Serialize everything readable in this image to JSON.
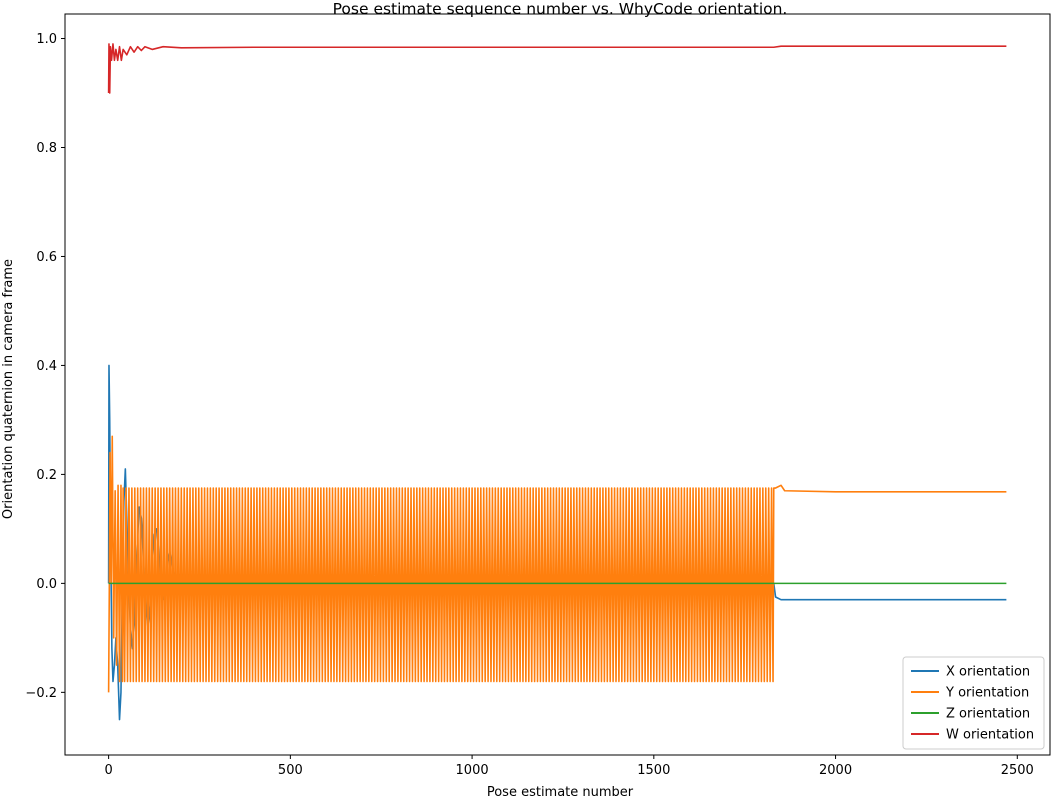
{
  "chart_data": {
    "type": "line",
    "title": "Pose estimate sequence number vs. WhyCode orientation.",
    "xlabel": "Pose estimate number",
    "ylabel": "Orientation quaternion in camera frame",
    "xlim": [
      -120,
      2590
    ],
    "ylim": [
      -0.315,
      1.045
    ],
    "x_ticks": [
      0,
      500,
      1000,
      1500,
      2000,
      2500
    ],
    "y_ticks": [
      -0.2,
      0.0,
      0.2,
      0.4,
      0.6,
      0.8,
      1.0
    ],
    "x_tick_labels": [
      "0",
      "500",
      "1000",
      "1500",
      "2000",
      "2500"
    ],
    "y_tick_labels": [
      "−0.2",
      "0.0",
      "0.2",
      "0.4",
      "0.6",
      "0.8",
      "1.0"
    ],
    "grid": false,
    "legend_position": "lower-right",
    "series": [
      {
        "name": "X orientation",
        "color": "#1f77b4",
        "points": [
          [
            0,
            0.0
          ],
          [
            1,
            0.4
          ],
          [
            3,
            0.3
          ],
          [
            6,
            0.05
          ],
          [
            9,
            -0.12
          ],
          [
            12,
            -0.18
          ],
          [
            16,
            -0.15
          ],
          [
            20,
            -0.1
          ],
          [
            25,
            -0.15
          ],
          [
            30,
            -0.25
          ],
          [
            34,
            -0.2
          ],
          [
            38,
            0.0
          ],
          [
            42,
            0.15
          ],
          [
            46,
            0.21
          ],
          [
            50,
            0.12
          ],
          [
            55,
            0.0
          ],
          [
            60,
            -0.08
          ],
          [
            66,
            -0.12
          ],
          [
            72,
            -0.06
          ],
          [
            78,
            0.06
          ],
          [
            84,
            0.14
          ],
          [
            90,
            0.12
          ],
          [
            96,
            0.04
          ],
          [
            102,
            -0.04
          ],
          [
            108,
            -0.08
          ],
          [
            114,
            -0.04
          ],
          [
            120,
            0.04
          ],
          [
            126,
            0.09
          ],
          [
            132,
            0.1
          ],
          [
            138,
            0.06
          ],
          [
            144,
            0.0
          ],
          [
            150,
            -0.03
          ],
          [
            156,
            -0.02
          ],
          [
            162,
            0.04
          ],
          [
            168,
            0.06
          ],
          [
            175,
            0.03
          ],
          [
            185,
            0.0
          ],
          [
            200,
            0.02
          ],
          [
            220,
            -0.01
          ],
          [
            250,
            0.0
          ],
          [
            300,
            0.01
          ],
          [
            400,
            0.0
          ],
          [
            500,
            0.0
          ],
          [
            700,
            0.0
          ],
          [
            1000,
            0.0
          ],
          [
            1300,
            0.0
          ],
          [
            1600,
            0.0
          ],
          [
            1830,
            0.0
          ],
          [
            1835,
            -0.025
          ],
          [
            1850,
            -0.03
          ],
          [
            1900,
            -0.03
          ],
          [
            2000,
            -0.03
          ],
          [
            2200,
            -0.03
          ],
          [
            2470,
            -0.03
          ]
        ]
      },
      {
        "name": "Y orientation",
        "color": "#ff7f0e",
        "oscillation": {
          "x_start": 40,
          "x_end": 1830,
          "period": 8,
          "high": 0.175,
          "low": -0.18
        },
        "points": [
          [
            0,
            -0.2
          ],
          [
            2,
            0.0
          ],
          [
            4,
            0.24
          ],
          [
            7,
            0.0
          ],
          [
            10,
            0.27
          ],
          [
            14,
            -0.1
          ],
          [
            18,
            0.17
          ],
          [
            22,
            -0.15
          ],
          [
            26,
            0.18
          ],
          [
            30,
            -0.18
          ],
          [
            34,
            0.18
          ],
          [
            38,
            -0.18
          ],
          [
            1830,
            0.175
          ],
          [
            1835,
            0.175
          ],
          [
            1850,
            0.18
          ],
          [
            1860,
            0.17
          ],
          [
            2000,
            0.168
          ],
          [
            2200,
            0.168
          ],
          [
            2470,
            0.168
          ]
        ]
      },
      {
        "name": "Z orientation",
        "color": "#2ca02c",
        "points": [
          [
            0,
            0.0
          ],
          [
            2470,
            0.0
          ]
        ]
      },
      {
        "name": "W orientation",
        "color": "#d62728",
        "points": [
          [
            0,
            0.9
          ],
          [
            1,
            0.99
          ],
          [
            3,
            0.9
          ],
          [
            5,
            0.985
          ],
          [
            8,
            0.96
          ],
          [
            12,
            0.99
          ],
          [
            16,
            0.96
          ],
          [
            20,
            0.98
          ],
          [
            25,
            0.96
          ],
          [
            30,
            0.985
          ],
          [
            35,
            0.96
          ],
          [
            40,
            0.98
          ],
          [
            50,
            0.97
          ],
          [
            60,
            0.985
          ],
          [
            70,
            0.975
          ],
          [
            80,
            0.985
          ],
          [
            90,
            0.978
          ],
          [
            100,
            0.985
          ],
          [
            120,
            0.98
          ],
          [
            150,
            0.985
          ],
          [
            200,
            0.983
          ],
          [
            400,
            0.984
          ],
          [
            800,
            0.984
          ],
          [
            1200,
            0.984
          ],
          [
            1600,
            0.984
          ],
          [
            1830,
            0.984
          ],
          [
            1850,
            0.986
          ],
          [
            2000,
            0.986
          ],
          [
            2470,
            0.986
          ]
        ]
      }
    ]
  }
}
